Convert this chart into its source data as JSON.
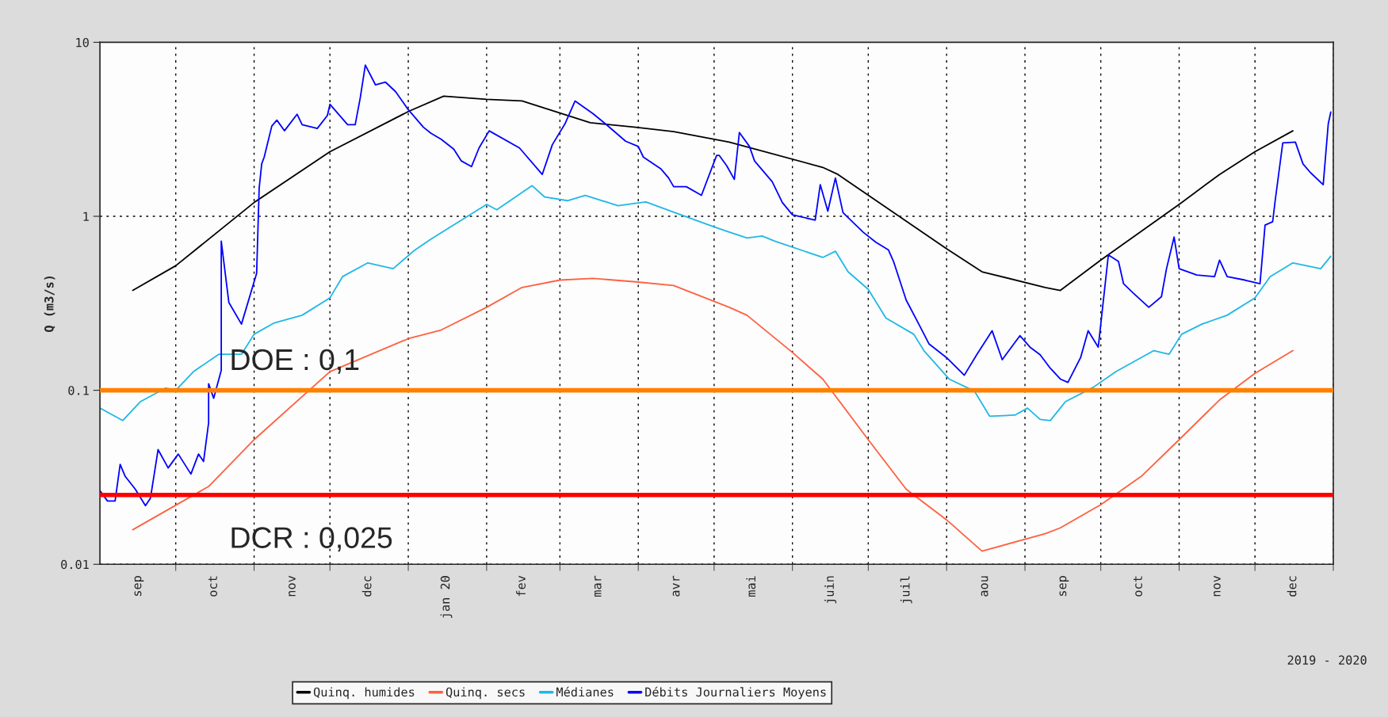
{
  "chart_data": {
    "type": "line",
    "ylabel": "Q (m3/s)",
    "log": "y",
    "xlim": [
      "2019-09-01",
      "2021-01-01"
    ],
    "ylim": [
      0.01,
      10
    ],
    "yticks": [
      0.01,
      0.1,
      1,
      10
    ],
    "xticks": [
      {
        "value": "2019-09-16",
        "label": "sep"
      },
      {
        "value": "2019-10-01",
        "label": null
      },
      {
        "value": "2019-10-16",
        "label": "oct"
      },
      {
        "value": "2019-11-01",
        "label": null
      },
      {
        "value": "2019-11-16",
        "label": "nov"
      },
      {
        "value": "2019-12-01",
        "label": null
      },
      {
        "value": "2019-12-16",
        "label": "dec"
      },
      {
        "value": "2020-01-01",
        "label": null
      },
      {
        "value": "2020-01-16",
        "label": "jan 20"
      },
      {
        "value": "2020-02-01",
        "label": null
      },
      {
        "value": "2020-02-15",
        "label": "fev"
      },
      {
        "value": "2020-03-01",
        "label": null
      },
      {
        "value": "2020-03-16",
        "label": "mar"
      },
      {
        "value": "2020-04-01",
        "label": null
      },
      {
        "value": "2020-04-16",
        "label": "avr"
      },
      {
        "value": "2020-05-01",
        "label": null
      },
      {
        "value": "2020-05-16",
        "label": "mai"
      },
      {
        "value": "2020-06-01",
        "label": null
      },
      {
        "value": "2020-06-16",
        "label": "juin"
      },
      {
        "value": "2020-07-01",
        "label": null
      },
      {
        "value": "2020-07-16",
        "label": "juil"
      },
      {
        "value": "2020-08-01",
        "label": null
      },
      {
        "value": "2020-08-16",
        "label": "aou"
      },
      {
        "value": "2020-09-01",
        "label": null
      },
      {
        "value": "2020-09-16",
        "label": "sep"
      },
      {
        "value": "2020-10-01",
        "label": null
      },
      {
        "value": "2020-10-16",
        "label": "oct"
      },
      {
        "value": "2020-11-01",
        "label": null
      },
      {
        "value": "2020-11-16",
        "label": "nov"
      },
      {
        "value": "2020-12-01",
        "label": null
      },
      {
        "value": "2020-12-16",
        "label": "dec"
      },
      {
        "value": "2021-01-01",
        "label": null
      }
    ],
    "grid": true,
    "legend": "bottom",
    "line_style": "solid",
    "series": [
      {
        "name": "Quinq. humides",
        "color": "#000000",
        "x": [
          "2019-09-14",
          "2019-10-01",
          "2019-11-01",
          "2019-12-01",
          "2020-01-01",
          "2020-01-15",
          "2020-02-01",
          "2020-02-15",
          "2020-03-13",
          "2020-03-31",
          "2020-04-15",
          "2020-05-07",
          "2020-06-13",
          "2020-06-19",
          "2020-08-01",
          "2020-08-15",
          "2020-09-09",
          "2020-09-15",
          "2020-10-01",
          "2020-11-01",
          "2020-11-17",
          "2020-12-01",
          "2020-12-16"
        ],
        "values": [
          0.375,
          0.52,
          1.2,
          2.35,
          4.0,
          4.9,
          4.7,
          4.6,
          3.45,
          3.25,
          3.07,
          2.67,
          1.91,
          1.74,
          0.65,
          0.48,
          0.39,
          0.375,
          0.56,
          1.17,
          1.74,
          2.35,
          3.1
        ]
      },
      {
        "name": "Quinq. secs",
        "color": "#ff6040",
        "x": [
          "2019-09-14",
          "2019-10-14",
          "2019-11-01",
          "2019-12-01",
          "2020-01-01",
          "2020-01-14",
          "2020-02-01",
          "2020-02-15",
          "2020-03-01",
          "2020-03-14",
          "2020-03-31",
          "2020-04-15",
          "2020-05-07",
          "2020-05-14",
          "2020-06-01",
          "2020-06-13",
          "2020-07-01",
          "2020-07-16",
          "2020-08-01",
          "2020-08-15",
          "2020-09-09",
          "2020-09-15",
          "2020-10-01",
          "2020-10-17",
          "2020-11-01",
          "2020-11-17",
          "2020-12-01",
          "2020-12-16"
        ],
        "values": [
          0.0158,
          0.028,
          0.052,
          0.128,
          0.198,
          0.222,
          0.3,
          0.39,
          0.43,
          0.44,
          0.42,
          0.4,
          0.3,
          0.27,
          0.165,
          0.116,
          0.052,
          0.027,
          0.018,
          0.0119,
          0.015,
          0.0162,
          0.022,
          0.032,
          0.052,
          0.088,
          0.125,
          0.169
        ]
      },
      {
        "name": "Médianes",
        "color": "#20b8e8",
        "x": [
          "2019-09-01",
          "2019-09-10",
          "2019-09-17",
          "2019-09-27",
          "2019-10-01",
          "2019-10-08",
          "2019-10-18",
          "2019-10-27",
          "2019-11-01",
          "2019-11-09",
          "2019-11-20",
          "2019-12-01",
          "2019-12-06",
          "2019-12-16",
          "2019-12-26",
          "2020-01-03",
          "2020-01-10",
          "2020-02-01",
          "2020-02-05",
          "2020-02-19",
          "2020-02-24",
          "2020-03-04",
          "2020-03-11",
          "2020-03-24",
          "2020-04-04",
          "2020-04-14",
          "2020-05-01",
          "2020-05-06",
          "2020-05-14",
          "2020-05-20",
          "2020-05-25",
          "2020-06-13",
          "2020-06-18",
          "2020-06-23",
          "2020-07-01",
          "2020-07-08",
          "2020-07-19",
          "2020-07-23",
          "2020-08-02",
          "2020-08-12",
          "2020-08-18",
          "2020-08-28",
          "2020-09-02",
          "2020-09-07",
          "2020-09-11",
          "2020-09-17",
          "2020-09-28",
          "2020-10-07",
          "2020-10-22",
          "2020-10-28",
          "2020-11-02",
          "2020-11-10",
          "2020-11-20",
          "2020-12-01",
          "2020-12-07",
          "2020-12-16",
          "2020-12-27",
          "2020-12-31"
        ],
        "values": [
          0.079,
          0.067,
          0.086,
          0.103,
          0.1,
          0.128,
          0.161,
          0.161,
          0.21,
          0.244,
          0.27,
          0.34,
          0.45,
          0.54,
          0.5,
          0.63,
          0.74,
          1.17,
          1.09,
          1.5,
          1.29,
          1.23,
          1.32,
          1.15,
          1.21,
          1.07,
          0.87,
          0.82,
          0.75,
          0.77,
          0.72,
          0.58,
          0.63,
          0.48,
          0.38,
          0.26,
          0.21,
          0.169,
          0.116,
          0.099,
          0.071,
          0.072,
          0.079,
          0.068,
          0.067,
          0.086,
          0.104,
          0.128,
          0.169,
          0.161,
          0.21,
          0.24,
          0.27,
          0.34,
          0.45,
          0.54,
          0.5,
          0.59
        ]
      },
      {
        "name": "Débits Journaliers Moyens",
        "color": "#0000ff",
        "x": [
          "2019-09-01",
          "2019-09-04",
          "2019-09-07",
          "2019-09-09",
          "2019-09-11",
          "2019-09-15",
          "2019-09-19",
          "2019-09-21",
          "2019-09-24",
          "2019-09-28",
          "2019-10-02",
          "2019-10-07",
          "2019-10-10",
          "2019-10-12",
          "2019-10-14",
          "2019-10-14",
          "2019-10-16",
          "2019-10-19",
          "2019-10-19",
          "2019-10-22",
          "2019-10-27",
          "2019-11-02",
          "2019-11-03",
          "2019-11-04",
          "2019-11-05",
          "2019-11-08",
          "2019-11-10",
          "2019-11-13",
          "2019-11-18",
          "2019-11-20",
          "2019-11-26",
          "2019-11-30",
          "2019-12-01",
          "2019-12-08",
          "2019-12-11",
          "2019-12-13",
          "2019-12-15",
          "2019-12-19",
          "2019-12-23",
          "2019-12-27",
          "2020-01-01",
          "2020-01-07",
          "2020-01-10",
          "2020-01-14",
          "2020-01-19",
          "2020-01-22",
          "2020-01-26",
          "2020-01-29",
          "2020-02-02",
          "2020-02-14",
          "2020-02-23",
          "2020-02-27",
          "2020-03-03",
          "2020-03-07",
          "2020-03-14",
          "2020-03-19",
          "2020-03-27",
          "2020-04-01",
          "2020-04-03",
          "2020-04-10",
          "2020-04-13",
          "2020-04-15",
          "2020-04-20",
          "2020-04-26",
          "2020-05-02",
          "2020-05-03",
          "2020-05-06",
          "2020-05-09",
          "2020-05-11",
          "2020-05-15",
          "2020-05-17",
          "2020-05-24",
          "2020-05-28",
          "2020-06-01",
          "2020-06-10",
          "2020-06-12",
          "2020-06-15",
          "2020-06-18",
          "2020-06-21",
          "2020-06-29",
          "2020-07-04",
          "2020-07-09",
          "2020-07-11",
          "2020-07-16",
          "2020-07-21",
          "2020-07-25",
          "2020-08-01",
          "2020-08-08",
          "2020-08-13",
          "2020-08-19",
          "2020-08-23",
          "2020-08-30",
          "2020-09-03",
          "2020-09-07",
          "2020-09-11",
          "2020-09-15",
          "2020-09-18",
          "2020-09-23",
          "2020-09-26",
          "2020-09-30",
          "2020-10-04",
          "2020-10-08",
          "2020-10-10",
          "2020-10-14",
          "2020-10-20",
          "2020-10-25",
          "2020-10-27",
          "2020-10-30",
          "2020-11-01",
          "2020-11-08",
          "2020-11-15",
          "2020-11-17",
          "2020-11-20",
          "2020-11-27",
          "2020-12-03",
          "2020-12-05",
          "2020-12-08",
          "2020-12-09",
          "2020-12-12",
          "2020-12-17",
          "2020-12-20",
          "2020-12-23",
          "2020-12-28",
          "2020-12-30",
          "2020-12-31"
        ],
        "values": [
          0.0265,
          0.0231,
          0.0231,
          0.0375,
          0.032,
          0.027,
          0.0217,
          0.024,
          0.0456,
          0.0358,
          0.043,
          0.033,
          0.043,
          0.039,
          0.065,
          0.109,
          0.09,
          0.13,
          0.72,
          0.32,
          0.24,
          0.47,
          1.45,
          2.0,
          2.19,
          3.3,
          3.57,
          3.1,
          3.86,
          3.36,
          3.2,
          3.8,
          4.4,
          3.36,
          3.36,
          4.8,
          7.4,
          5.7,
          5.9,
          5.2,
          4.1,
          3.25,
          3.0,
          2.77,
          2.43,
          2.08,
          1.93,
          2.47,
          3.1,
          2.47,
          1.74,
          2.58,
          3.4,
          4.6,
          3.9,
          3.4,
          2.7,
          2.52,
          2.19,
          1.87,
          1.66,
          1.48,
          1.48,
          1.32,
          2.24,
          2.24,
          1.95,
          1.63,
          3.03,
          2.52,
          2.08,
          1.58,
          1.2,
          1.02,
          0.95,
          1.52,
          1.07,
          1.66,
          1.05,
          0.81,
          0.71,
          0.64,
          0.55,
          0.33,
          0.24,
          0.185,
          0.154,
          0.122,
          0.161,
          0.22,
          0.15,
          0.206,
          0.177,
          0.16,
          0.134,
          0.116,
          0.111,
          0.154,
          0.22,
          0.177,
          0.6,
          0.55,
          0.41,
          0.36,
          0.3,
          0.345,
          0.5,
          0.76,
          0.5,
          0.46,
          0.45,
          0.56,
          0.45,
          0.43,
          0.41,
          0.89,
          0.93,
          1.23,
          2.64,
          2.67,
          2.0,
          1.78,
          1.52,
          3.4,
          3.97
        ]
      }
    ],
    "ref_lines": [
      {
        "axis": "y",
        "value": 0.1,
        "label": "DOE : 0,1",
        "color": "#ff8000"
      },
      {
        "axis": "y",
        "value": 0.025,
        "label": "DCR : 0,025",
        "color": "#ff0000"
      }
    ],
    "annotations": [
      "2019 - 2020"
    ]
  }
}
